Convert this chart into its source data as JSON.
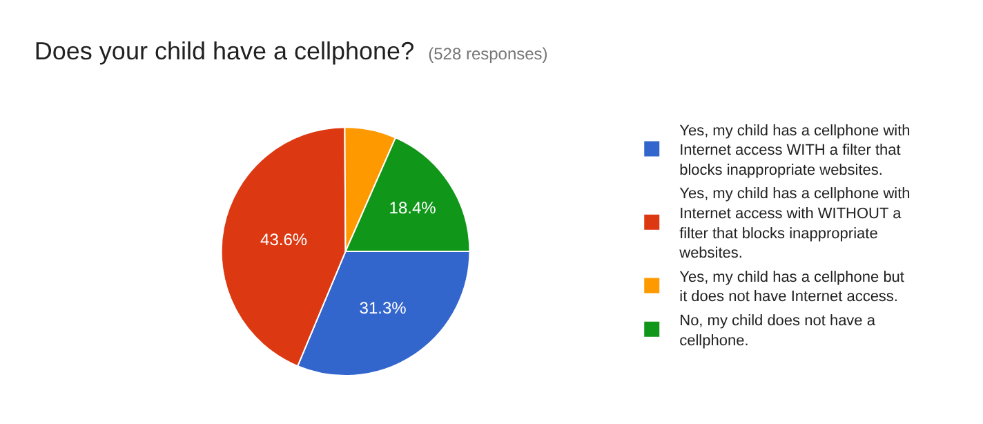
{
  "chart_data": {
    "type": "pie",
    "title": "Does your child have a cellphone?",
    "subtitle": "(528 responses)",
    "categories": [
      "Yes, my child has a cellphone with Internet access WITH a filter that blocks inappropriate websites.",
      "Yes, my child has a cellphone with Internet access with WITHOUT a filter that blocks inappropriate websites.",
      "Yes, my child has a cellphone but it does not have Internet access.",
      "No, my child does not have a cellphone."
    ],
    "values": [
      31.3,
      43.6,
      6.7,
      18.4
    ],
    "colors": [
      "#3366cc",
      "#dc3912",
      "#ff9900",
      "#109618"
    ],
    "value_labels": [
      "31.3%",
      "43.6%",
      null,
      "18.4%"
    ],
    "legend": "right"
  }
}
